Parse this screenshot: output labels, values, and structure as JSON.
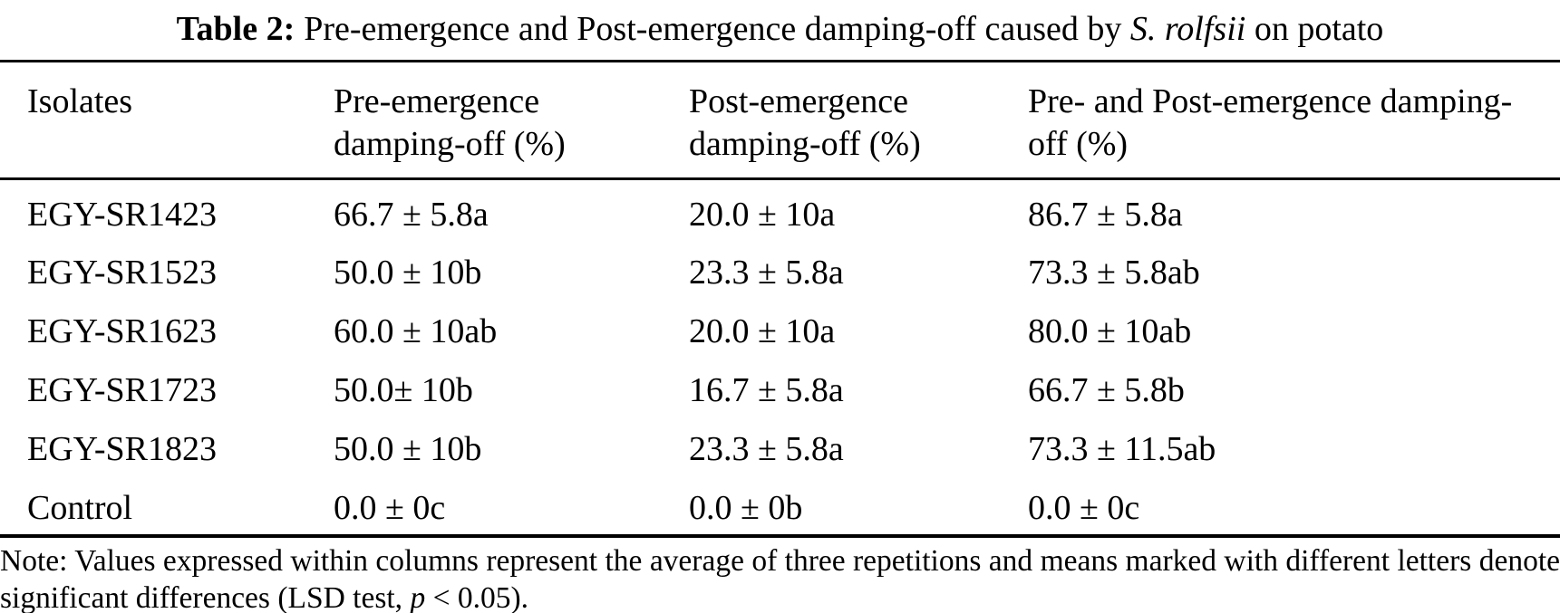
{
  "caption": {
    "label": "Table 2:",
    "text_before_species": "Pre-emergence and Post-emergence damping-off caused by ",
    "species": "S. rolfsii",
    "text_after_species": " on potato"
  },
  "table": {
    "headers": [
      "Isolates",
      "Pre-emergence damping-off (%)",
      "Post-emergence damping-off (%)",
      "Pre- and Post-emergence damping-off (%)"
    ],
    "rows": [
      [
        "EGY-SR1423",
        "66.7 ± 5.8a",
        "20.0 ± 10a",
        "86.7 ± 5.8a"
      ],
      [
        "EGY-SR1523",
        "50.0 ± 10b",
        "23.3 ± 5.8a",
        "73.3 ± 5.8ab"
      ],
      [
        "EGY-SR1623",
        "60.0 ± 10ab",
        "20.0 ± 10a",
        "80.0 ± 10ab"
      ],
      [
        "EGY-SR1723",
        "50.0± 10b",
        "16.7 ± 5.8a",
        "66.7 ± 5.8b"
      ],
      [
        "EGY-SR1823",
        "50.0 ± 10b",
        "23.3 ± 5.8a",
        "73.3 ± 11.5ab"
      ],
      [
        "Control",
        "0.0 ± 0c",
        "0.0 ± 0b",
        "0.0 ± 0c"
      ]
    ]
  },
  "note": {
    "text_before_p": "Note: Values expressed within columns represent the average of three repetitions and means marked with different letters denote significant differences (LSD test, ",
    "p_symbol": "p",
    "text_after_p": " < 0.05)."
  },
  "colors": {
    "text": "#000000",
    "background": "#ffffff",
    "rule": "#000000"
  }
}
